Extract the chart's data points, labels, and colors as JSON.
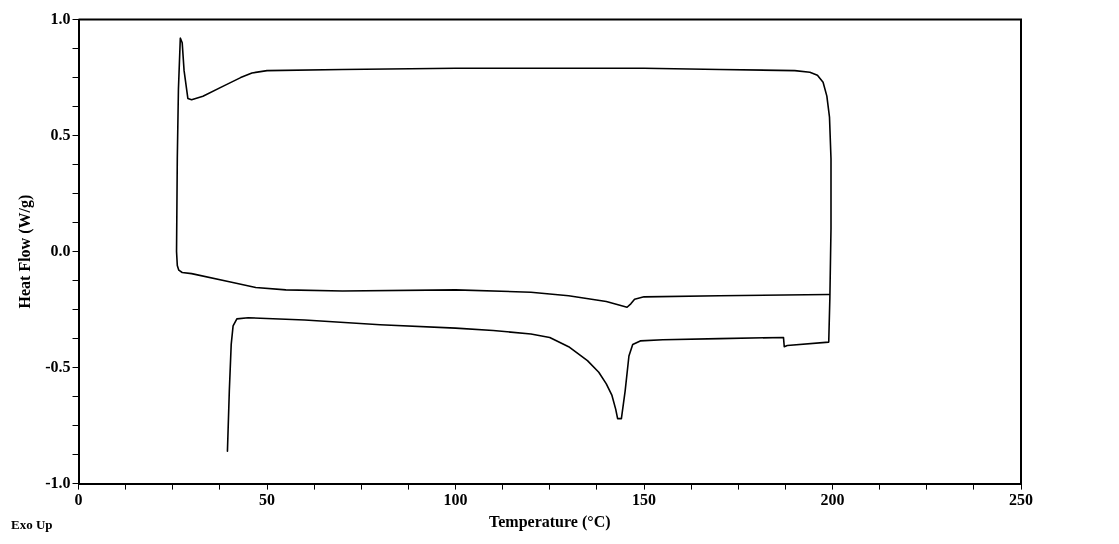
{
  "chart_data": {
    "type": "line",
    "xlabel": "Temperature (°C)",
    "ylabel": "Heat Flow (W/g)",
    "annotations": [
      "Exo Up"
    ],
    "xlim": [
      0,
      250
    ],
    "ylim": [
      -1.0,
      1.0
    ],
    "xticks": [
      0,
      {
        "value": 12.5,
        "label": null
      },
      {
        "value": 25,
        "label": null
      },
      {
        "value": 37.5,
        "label": null
      },
      50,
      {
        "value": 62.5,
        "label": null
      },
      {
        "value": 75,
        "label": null
      },
      {
        "value": 87.5,
        "label": null
      },
      100,
      {
        "value": 112.5,
        "label": null
      },
      {
        "value": 125,
        "label": null
      },
      {
        "value": 137.5,
        "label": null
      },
      150,
      {
        "value": 162.5,
        "label": null
      },
      {
        "value": 175,
        "label": null
      },
      {
        "value": 187.5,
        "label": null
      },
      200,
      {
        "value": 212.5,
        "label": null
      },
      {
        "value": 225,
        "label": null
      },
      {
        "value": 237.5,
        "label": null
      },
      250
    ],
    "yticks": [
      {
        "value": -1.0,
        "label": "-1.0"
      },
      {
        "value": -0.875,
        "label": null
      },
      {
        "value": -0.75,
        "label": null
      },
      {
        "value": -0.625,
        "label": null
      },
      -0.5,
      {
        "value": -0.375,
        "label": null
      },
      {
        "value": -0.25,
        "label": null
      },
      {
        "value": -0.125,
        "label": null
      },
      {
        "value": 0,
        "label": "0.0"
      },
      {
        "value": 0.125,
        "label": null
      },
      {
        "value": 0.25,
        "label": null
      },
      {
        "value": 0.375,
        "label": null
      },
      0.5,
      {
        "value": 0.625,
        "label": null
      },
      {
        "value": 0.75,
        "label": null
      },
      {
        "value": 0.875,
        "label": null
      },
      {
        "value": 1.0,
        "label": "1.0"
      }
    ],
    "grid": false,
    "legend": false,
    "marker": "none",
    "line_style": "solid",
    "series": [
      {
        "color": "#000000",
        "x": [
          39.5,
          40,
          40.5,
          41,
          42,
          45,
          60,
          80,
          100,
          110,
          120,
          125,
          130,
          135,
          138,
          140,
          141.5,
          142.5,
          143,
          144,
          145,
          146,
          147,
          149,
          155,
          170,
          187,
          187.2,
          188,
          199,
          199.3,
          199.6,
          199.6,
          199.2,
          198.5,
          197.5,
          196,
          194,
          190,
          170,
          150,
          100,
          70,
          50,
          46,
          43,
          38,
          33,
          30,
          29,
          28,
          27.5,
          27,
          26.5,
          26.2,
          26,
          26.2,
          26.6,
          27.5,
          30,
          40,
          47,
          55,
          70,
          100,
          120,
          130,
          140,
          145.5,
          146.5,
          147.5,
          150,
          170,
          199
        ],
        "values": [
          -0.86,
          -0.6,
          -0.4,
          -0.32,
          -0.29,
          -0.285,
          -0.295,
          -0.315,
          -0.33,
          -0.34,
          -0.355,
          -0.37,
          -0.41,
          -0.47,
          -0.52,
          -0.57,
          -0.62,
          -0.68,
          -0.72,
          -0.72,
          -0.6,
          -0.45,
          -0.4,
          -0.385,
          -0.38,
          -0.375,
          -0.37,
          -0.41,
          -0.405,
          -0.39,
          -0.2,
          0.1,
          0.4,
          0.58,
          0.67,
          0.73,
          0.76,
          0.773,
          0.78,
          0.785,
          0.79,
          0.79,
          0.785,
          0.78,
          0.77,
          0.75,
          0.71,
          0.67,
          0.655,
          0.66,
          0.78,
          0.9,
          0.92,
          0.7,
          0.4,
          0.0,
          -0.06,
          -0.08,
          -0.09,
          -0.095,
          -0.13,
          -0.155,
          -0.165,
          -0.17,
          -0.165,
          -0.175,
          -0.19,
          -0.215,
          -0.24,
          -0.225,
          -0.205,
          -0.195,
          -0.19,
          -0.185
        ]
      }
    ]
  }
}
